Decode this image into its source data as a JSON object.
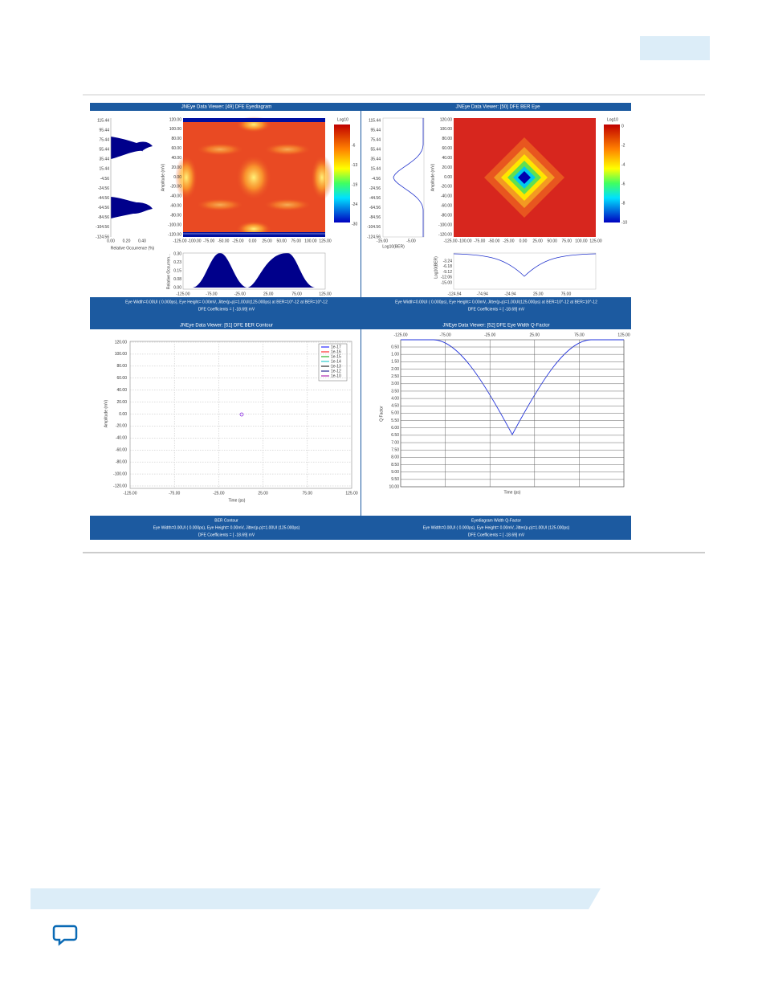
{
  "figure": {
    "panels": [
      {
        "title": "JNEye Data Viewer: [49] DFE Eyediagram",
        "axes": [
          {
            "ticks": [
              "115.44",
              "95.44",
              "75.44",
              "55.44",
              "35.44",
              "15.44",
              "-4.56",
              "-24.56",
              "-44.56",
              "-64.56",
              "-84.56",
              "-104.56",
              "-124.56"
            ]
          },
          {
            "ticks": [
              "0.00",
              "0.20",
              "0.40"
            ],
            "label": "Relative Occurrence (%)"
          },
          {
            "ticks": [
              "120.00",
              "100.00",
              "80.00",
              "60.00",
              "40.00",
              "20.00",
              "0.00",
              "-20.00",
              "-40.00",
              "-60.00",
              "-80.00",
              "-100.00",
              "-120.00"
            ],
            "label": "Amplitude (mV)"
          },
          {
            "ticks": [
              "-125.00",
              "-100.00",
              "-75.00",
              "-50.00",
              "-25.00",
              "0.00",
              "25.00",
              "50.00",
              "75.00",
              "100.00",
              "125.00"
            ]
          },
          {
            "ticks": [
              "-6",
              "-13",
              "-19",
              "-24",
              "-30"
            ],
            "label": "Log10"
          },
          {
            "ticks": [
              "0.30",
              "0.23",
              "0.15",
              "0.08",
              "0.00"
            ],
            "label": "Relative Occurren..."
          },
          {
            "ticks": [
              "-125.00",
              "-75.00",
              "-25.00",
              "25.00",
              "75.00",
              "125.00"
            ]
          }
        ],
        "footer": [
          "Eye Width=0.00UI ( 0.000ps), Eye Height=  0.00mV, Jitter(p-p)=1.00UI(125.000ps) at BER=10^-12 at BER=10^-12",
          "DFE Coefficients = [  -18.69] mV"
        ]
      },
      {
        "title": "JNEye Data Viewer: [50] DFE BER Eye",
        "axes": [
          {
            "ticks": [
              "115.44",
              "95.44",
              "75.44",
              "55.44",
              "35.44",
              "15.44",
              "-4.56",
              "-24.56",
              "-44.56",
              "-64.56",
              "-84.56",
              "-104.56",
              "-124.56"
            ]
          },
          {
            "ticks": [
              "-15.00",
              "-5.00"
            ],
            "label": "Log10(BER)"
          },
          {
            "ticks": [
              "120.00",
              "100.00",
              "80.00",
              "60.00",
              "40.00",
              "20.00",
              "0.00",
              "-20.00",
              "-40.00",
              "-60.00",
              "-80.00",
              "-100.00",
              "-120.00"
            ],
            "label": "Amplitude (mV)"
          },
          {
            "ticks": [
              "-125.00",
              "-100.00",
              "-75.00",
              "-50.00",
              "-25.00",
              "0.00",
              "25.00",
              "50.00",
              "75.00",
              "100.00",
              "125.00"
            ]
          },
          {
            "ticks": [
              "0",
              "-2",
              "-4",
              "-6",
              "-8",
              "-10"
            ],
            "label": "Log10"
          },
          {
            "ticks": [
              "-3.24",
              "-6.18",
              "-9.12",
              "-12.06",
              "-15.00"
            ],
            "label": "Log10(BER)"
          },
          {
            "ticks": [
              "-124.94",
              "-74.94",
              "-24.94",
              "25.00",
              "75.00"
            ]
          }
        ],
        "footer": [
          "Eye Width=0.00UI ( 0.000ps), Eye Height=  0.00mV, Jitter(p-p)=1.00UI(125.000ps) at BER=10^-12 at BER=10^-12",
          "DFE Coefficients = [  -18.69] mV"
        ]
      },
      {
        "title": "JNEye Data Viewer: [51] DFE BER Contour",
        "axes": [
          {
            "ticks": [
              "120.00",
              "100.00",
              "80.00",
              "60.00",
              "40.00",
              "20.00",
              "0.00",
              "-20.00",
              "-40.00",
              "-60.00",
              "-80.00",
              "-100.00",
              "-120.00"
            ],
            "label": "Amplitude (mV)"
          },
          {
            "ticks": [
              "-125.00",
              "-75.00",
              "-25.00",
              "25.00",
              "75.00",
              "125.00"
            ],
            "label": "Time (ps)"
          }
        ],
        "legend": [
          "1e-17",
          "1e-16",
          "1e-15",
          "1e-14",
          "1e-13",
          "1e-12",
          "1e-10"
        ],
        "footer": [
          "BER Contour",
          "Eye Width=0.00UI ( 0.000ps), Eye Height=  0.00mV, Jitter(p-p)=1.00UI (125.000ps)",
          "DFE Coefficients = [  -18.69] mV"
        ]
      },
      {
        "title": "JNEye Data Viewer: [52] DFE Eye Width Q-Factor",
        "axes": [
          {
            "ticks": [
              "0.50",
              "1.00",
              "1.50",
              "2.00",
              "2.50",
              "3.00",
              "3.50",
              "4.00",
              "4.50",
              "5.00",
              "5.50",
              "6.00",
              "6.50",
              "7.00",
              "7.50",
              "8.00",
              "8.50",
              "9.00",
              "9.50",
              "10.00"
            ],
            "label": "Q Factor"
          },
          {
            "ticks": [
              "-125.00",
              "-75.00",
              "-25.00",
              "25.00",
              "75.00",
              "125.00"
            ],
            "label": "Time (ps)"
          }
        ],
        "footer": [
          "Eyediagram Width Q-Factor",
          "Eye Width=0.00UI ( 0.000ps), Eye Height=  0.00mV, Jitter(p-p)=1.00UI (125.000ps)",
          "DFE Coefficients = [  -18.69] mV"
        ]
      }
    ]
  }
}
